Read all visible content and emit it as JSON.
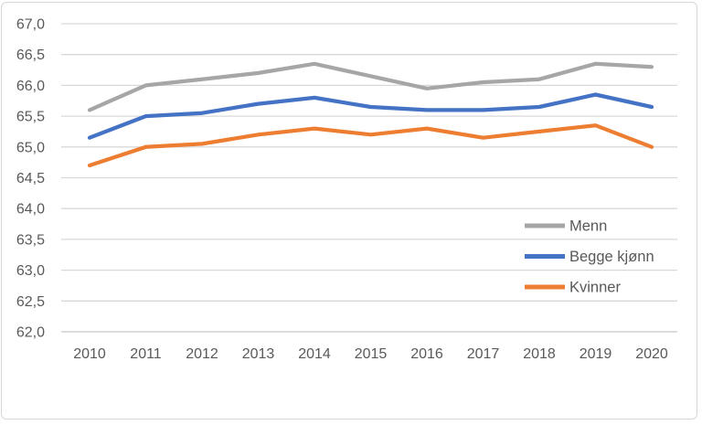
{
  "window": {
    "background": "#ffffff",
    "border_color": "#d6d6d6"
  },
  "chart_data": {
    "type": "line",
    "title": "",
    "xlabel": "",
    "ylabel": "",
    "x": [
      "2010",
      "2011",
      "2012",
      "2013",
      "2014",
      "2015",
      "2016",
      "2017",
      "2018",
      "2019",
      "2020"
    ],
    "series": [
      {
        "name": "Menn",
        "color": "#A6A6A6",
        "values": [
          65.6,
          66.0,
          66.1,
          66.2,
          66.35,
          66.15,
          65.95,
          66.05,
          66.1,
          66.35,
          66.3
        ]
      },
      {
        "name": "Begge kjønn",
        "color": "#4472C4",
        "values": [
          65.15,
          65.5,
          65.55,
          65.7,
          65.8,
          65.65,
          65.6,
          65.6,
          65.65,
          65.85,
          65.65
        ]
      },
      {
        "name": "Kvinner",
        "color": "#ED7D31",
        "values": [
          64.7,
          65.0,
          65.05,
          65.2,
          65.3,
          65.2,
          65.3,
          65.15,
          65.25,
          65.35,
          65.0
        ]
      }
    ],
    "ylim": [
      62.0,
      67.0
    ],
    "y_step": 0.5,
    "y_tick_labels": [
      "62,0",
      "62,5",
      "63,0",
      "63,5",
      "64,0",
      "64,5",
      "65,0",
      "65,5",
      "66,0",
      "66,5",
      "67,0"
    ],
    "grid": true,
    "gridline_color": "#D9D9D9",
    "axis_line_color": "#C6C6C6",
    "text_color": "#595959",
    "legend": {
      "position": "middle-right",
      "entries": [
        "Menn",
        "Begge kjønn",
        "Kvinner"
      ]
    }
  }
}
